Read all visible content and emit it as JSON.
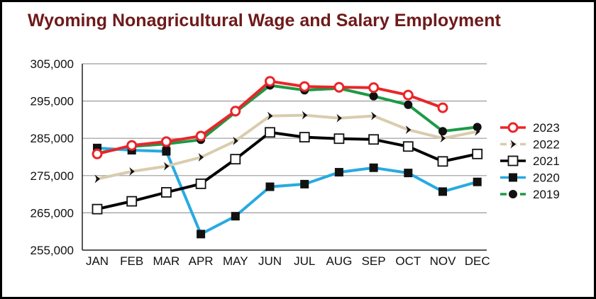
{
  "title": "Wyoming Nonagricultural Wage and Salary Employment",
  "chart_data": {
    "type": "line",
    "title": "Wyoming Nonagricultural Wage and Salary Employment",
    "xlabel": "",
    "ylabel": "",
    "categories": [
      "JAN",
      "FEB",
      "MAR",
      "APR",
      "MAY",
      "JUN",
      "JUL",
      "AUG",
      "SEP",
      "OCT",
      "NOV",
      "DEC"
    ],
    "ylim": [
      255000,
      305000
    ],
    "yticks": [
      255000,
      265000,
      275000,
      285000,
      295000,
      305000
    ],
    "ytick_labels": [
      "255,000",
      "265,000",
      "275,000",
      "285,000",
      "295,000",
      "305,000"
    ],
    "grid": "horizontal",
    "legend": "right",
    "series": [
      {
        "name": "2023",
        "color": "#e8262a",
        "marker": "open-circle",
        "values": [
          280800,
          283100,
          284100,
          285600,
          292300,
          300300,
          298900,
          298700,
          298600,
          296600,
          293200,
          null
        ]
      },
      {
        "name": "2022",
        "color": "#d9ccae",
        "marker": "chevron",
        "values": [
          274100,
          276100,
          277500,
          279900,
          284300,
          291000,
          291200,
          290400,
          291000,
          287300,
          285000,
          286800
        ]
      },
      {
        "name": "2021",
        "color": "#000000",
        "marker": "open-square",
        "values": [
          266000,
          268100,
          270500,
          272800,
          279400,
          286600,
          285300,
          284900,
          284700,
          282800,
          278800,
          280800
        ]
      },
      {
        "name": "2020",
        "color": "#27aae1",
        "marker": "filled-square",
        "values": [
          282400,
          281800,
          281500,
          259300,
          264100,
          272000,
          272700,
          275900,
          277100,
          275700,
          270700,
          273300
        ]
      },
      {
        "name": "2019",
        "color": "#1c9a47",
        "marker": "filled-circle",
        "values": [
          281000,
          282800,
          283500,
          284600,
          292000,
          299200,
          297900,
          298400,
          296300,
          294000,
          286900,
          288000
        ]
      }
    ]
  }
}
